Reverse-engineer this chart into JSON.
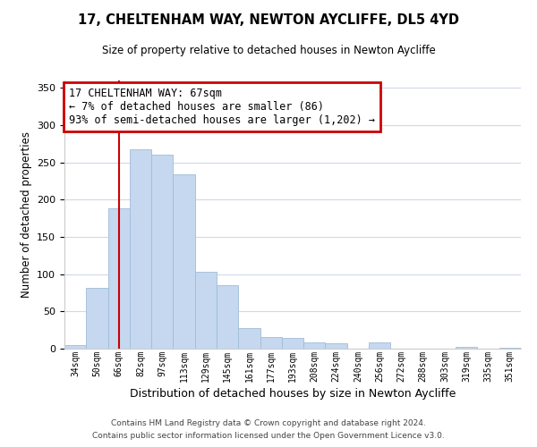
{
  "title": "17, CHELTENHAM WAY, NEWTON AYCLIFFE, DL5 4YD",
  "subtitle": "Size of property relative to detached houses in Newton Aycliffe",
  "xlabel": "Distribution of detached houses by size in Newton Aycliffe",
  "ylabel": "Number of detached properties",
  "footer_lines": [
    "Contains HM Land Registry data © Crown copyright and database right 2024.",
    "Contains public sector information licensed under the Open Government Licence v3.0."
  ],
  "annotation_title": "17 CHELTENHAM WAY: 67sqm",
  "annotation_line2": "← 7% of detached houses are smaller (86)",
  "annotation_line3": "93% of semi-detached houses are larger (1,202) →",
  "bar_labels": [
    "34sqm",
    "50sqm",
    "66sqm",
    "82sqm",
    "97sqm",
    "113sqm",
    "129sqm",
    "145sqm",
    "161sqm",
    "177sqm",
    "193sqm",
    "208sqm",
    "224sqm",
    "240sqm",
    "256sqm",
    "272sqm",
    "288sqm",
    "303sqm",
    "319sqm",
    "335sqm",
    "351sqm"
  ],
  "bar_values": [
    5,
    82,
    188,
    268,
    261,
    234,
    103,
    85,
    28,
    16,
    14,
    8,
    7,
    0,
    8,
    0,
    0,
    0,
    2,
    0,
    1
  ],
  "bar_color": "#c5d8f0",
  "bar_edge_color": "#a0bcd8",
  "vline_x_index": 2,
  "vline_color": "#cc0000",
  "annotation_box_edge_color": "#cc0000",
  "ylim": [
    0,
    360
  ],
  "yticks": [
    0,
    50,
    100,
    150,
    200,
    250,
    300,
    350
  ],
  "background_color": "#ffffff",
  "grid_color": "#d0d8e8"
}
